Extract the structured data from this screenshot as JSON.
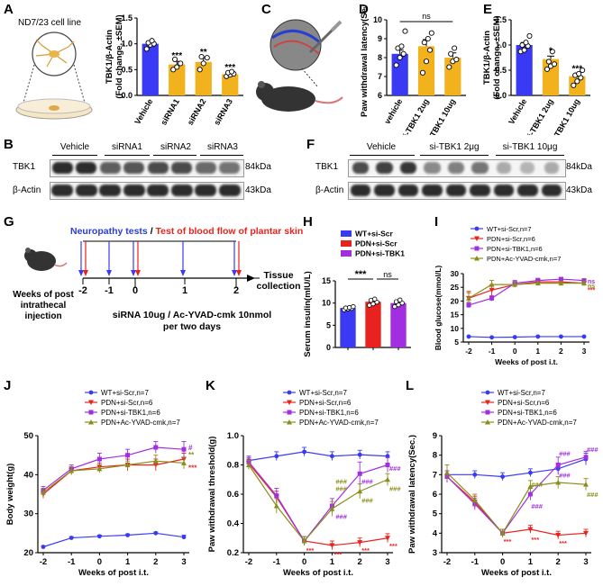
{
  "panels": {
    "A": "A",
    "B": "B",
    "C": "C",
    "D": "D",
    "E": "E",
    "F": "F",
    "G": "G",
    "H": "H",
    "I": "I",
    "J": "J",
    "K": "K",
    "L": "L"
  },
  "panelA": {
    "cell_line": "ND7/23 cell line"
  },
  "panelB": {
    "lanes": [
      "Vehicle",
      "siRNA1",
      "siRNA2",
      "siRNA3"
    ],
    "rows": [
      "TBK1",
      "β-Actin"
    ],
    "sizes": [
      "84kDa",
      "43kDa"
    ]
  },
  "panelF": {
    "lanes": [
      "Vehicle",
      "si-TBK1 2μg",
      "si-TBK1 10μg"
    ],
    "rows": [
      "TBK1",
      "β-Actin"
    ],
    "sizes": [
      "84kDa",
      "43kDa"
    ]
  },
  "panelG": {
    "title_part1": "Neuropathy tests",
    "title_sep": " / ",
    "title_part2": "Test of blood flow of plantar skin",
    "weeks": [
      "-2",
      "-1",
      "0",
      "1",
      "2"
    ],
    "left_label_1": "Weeks of post",
    "left_label_2": "intrathecal injection",
    "right_label_1": "Tissue",
    "right_label_2": "collection",
    "treatment_1": "siRNA 10ug / Ac-YVAD-cmk 10nmol",
    "treatment_2": "per two days"
  },
  "colors": {
    "blue": "#3a3af5",
    "orange": "#f2b21e",
    "red": "#e8231f",
    "purple": "#a12ee0",
    "olive": "#8c8c1a",
    "grey": "#777777"
  },
  "chart_data": [
    {
      "id": "A",
      "type": "bar",
      "categories": [
        "Vehicle",
        "siRNA1",
        "siRNA2",
        "siRNA3"
      ],
      "values": [
        1.0,
        0.6,
        0.65,
        0.41
      ],
      "errors": [
        0.04,
        0.06,
        0.08,
        0.03
      ],
      "points": [
        [
          0.9,
          0.98,
          1.0,
          1.02,
          1.06
        ],
        [
          0.5,
          0.55,
          0.62,
          0.7
        ],
        [
          0.5,
          0.62,
          0.73,
          0.75
        ],
        [
          0.37,
          0.4,
          0.42,
          0.44,
          0.46
        ]
      ],
      "sig": [
        "",
        "***",
        "**",
        "***"
      ],
      "ylabel": "TBK1/β-Actin",
      "ylabel2": "(Fold change, ±SEM)",
      "ylim": [
        0,
        1.5
      ],
      "yticks": [
        "0.0",
        "0.5",
        "1.0",
        "1.5"
      ]
    },
    {
      "id": "D",
      "type": "bar",
      "categories": [
        "vehicle",
        "si-TBK1 2ug",
        "si-TBK1 10ug"
      ],
      "values": [
        8.2,
        8.6,
        8.0
      ],
      "errors": [
        0.2,
        0.35,
        0.25
      ],
      "points": [
        [
          7.6,
          8.0,
          8.2,
          8.5,
          8.6,
          9.4
        ],
        [
          7.2,
          7.8,
          8.4,
          8.8,
          9.0,
          9.3
        ],
        [
          7.5,
          7.8,
          7.9,
          8.2,
          8.5
        ]
      ],
      "sig": [
        "",
        "",
        ""
      ],
      "ns": "ns",
      "ylabel": "Paw withdrawal latency(Sec.)",
      "ylim": [
        6,
        10
      ],
      "yticks": [
        "6",
        "7",
        "8",
        "9",
        "10"
      ]
    },
    {
      "id": "E",
      "type": "bar",
      "categories": [
        "Vehicle",
        "si-TBK1 2ug",
        "si-TBK1 10ug"
      ],
      "values": [
        1.0,
        0.72,
        0.38
      ],
      "errors": [
        0.05,
        0.06,
        0.04
      ],
      "points": [
        [
          0.87,
          0.9,
          0.98,
          1.0,
          1.05,
          1.18
        ],
        [
          0.52,
          0.58,
          0.62,
          0.67,
          0.87
        ],
        [
          0.2,
          0.28,
          0.35,
          0.4,
          0.43,
          0.5
        ]
      ],
      "sig": [
        "",
        "*",
        "***"
      ],
      "ylabel": "TBK1/β-Actin",
      "ylabel2": "(Fold change, ±SEM)",
      "ylim": [
        0,
        1.5
      ],
      "yticks": [
        "0.0",
        "0.5",
        "1.0",
        "1.5"
      ]
    },
    {
      "id": "H",
      "type": "bar",
      "categories": [
        "WT+si-Scr",
        "PDN+si-Scr",
        "PDN+si-TBK1"
      ],
      "values": [
        8.9,
        10.3,
        10.0
      ],
      "errors": [
        0.15,
        0.35,
        0.4
      ],
      "points": [
        [
          8.5,
          8.7,
          8.8,
          8.9,
          9.0,
          9.2
        ],
        [
          9.5,
          9.8,
          10.2,
          10.6,
          10.9
        ],
        [
          9.2,
          9.6,
          10.0,
          10.3,
          10.7
        ]
      ],
      "sig_text": "***",
      "ns": "ns",
      "ylabel": "Serum insulin(mIU/L)",
      "ylim": [
        0,
        15
      ],
      "yticks": [
        "0",
        "5",
        "10",
        "15"
      ]
    },
    {
      "id": "I",
      "type": "line",
      "x": [
        "-2",
        "-1",
        "0",
        "1",
        "2",
        "3"
      ],
      "xlabel": "Weeks of post i.t.",
      "ylabel": "Blood glucose(mmol/L)",
      "ylim": [
        5,
        30
      ],
      "yticks": [
        "5",
        "10",
        "15",
        "20",
        "25",
        "30"
      ],
      "series": [
        {
          "name": "WT+si-Scr,n=7",
          "values": [
            7,
            6.7,
            6.8,
            7,
            7,
            7
          ],
          "errors": [
            0.2,
            0.2,
            0.2,
            0.2,
            0.2,
            0.2
          ]
        },
        {
          "name": "PDN+si-Scr,n=6",
          "values": [
            21,
            24,
            26,
            27,
            27,
            26.5
          ],
          "errors": [
            2.5,
            2,
            1,
            0.8,
            0.8,
            0.8
          ]
        },
        {
          "name": "PDN+si-TBK1,n=6",
          "values": [
            18.5,
            21,
            26.5,
            27.5,
            28,
            27.5
          ],
          "errors": [
            1,
            1,
            1,
            0.8,
            0.5,
            0.5
          ]
        },
        {
          "name": "PDN+Ac-YVAD-cmk,n=7",
          "values": [
            21,
            26,
            26,
            26.5,
            26.5,
            26.5
          ],
          "errors": [
            2,
            1.5,
            1,
            0.8,
            0.8,
            0.8
          ]
        }
      ],
      "annotations": [
        "ns",
        "ns",
        "***"
      ]
    },
    {
      "id": "J",
      "type": "line",
      "x": [
        "-2",
        "-1",
        "0",
        "1",
        "2",
        "3"
      ],
      "xlabel": "Weeks of post i.t.",
      "ylabel": "Body weight(g)",
      "ylim": [
        20,
        50
      ],
      "yticks": [
        "20",
        "30",
        "40",
        "50"
      ],
      "series": [
        {
          "name": "WT+si-Scr,n=7",
          "values": [
            21.5,
            23.8,
            24.2,
            24.5,
            25,
            24
          ],
          "errors": [
            0.2,
            0.3,
            0.3,
            0.3,
            0.3,
            0.5
          ]
        },
        {
          "name": "PDN+si-Scr,n=6",
          "values": [
            35,
            41,
            42,
            42.5,
            42.5,
            44
          ],
          "errors": [
            1,
            1,
            1,
            1.5,
            1.5,
            1.5
          ]
        },
        {
          "name": "PDN+si-TBK1,n=6",
          "values": [
            36,
            41.5,
            44,
            45,
            47,
            46.5
          ],
          "errors": [
            1,
            1,
            1.5,
            1.5,
            1.5,
            2
          ]
        },
        {
          "name": "PDN+Ac-YVAD-cmk,n=7",
          "values": [
            35.5,
            41,
            41.5,
            42.5,
            43.5,
            43
          ],
          "errors": [
            1,
            1,
            1,
            1,
            1.5,
            1.5
          ]
        }
      ],
      "annotations": [
        "#",
        "**",
        "***"
      ]
    },
    {
      "id": "K",
      "type": "line",
      "x": [
        "-2",
        "-1",
        "0",
        "1",
        "2",
        "3"
      ],
      "xlabel": "Weeks of post i.t.",
      "ylabel": "Paw withdrawal threshold(g)",
      "ylim": [
        0.2,
        1.0
      ],
      "yticks": [
        "0.2",
        "0.4",
        "0.6",
        "0.8",
        "1.0"
      ],
      "series": [
        {
          "name": "WT+si-Scr,n=7",
          "values": [
            0.83,
            0.86,
            0.89,
            0.86,
            0.87,
            0.86
          ],
          "errors": [
            0.03,
            0.03,
            0.03,
            0.03,
            0.03,
            0.03
          ]
        },
        {
          "name": "PDN+si-Scr,n=6",
          "values": [
            0.81,
            0.58,
            0.28,
            0.25,
            0.27,
            0.3
          ],
          "errors": [
            0.03,
            0.04,
            0.03,
            0.03,
            0.03,
            0.03
          ]
        },
        {
          "name": "PDN+si-TBK1,n=6",
          "values": [
            0.82,
            0.59,
            0.28,
            0.52,
            0.74,
            0.8
          ],
          "errors": [
            0.03,
            0.05,
            0.03,
            0.05,
            0.08,
            0.05
          ]
        },
        {
          "name": "PDN+Ac-YVAD-cmk,n=7",
          "values": [
            0.8,
            0.52,
            0.28,
            0.5,
            0.62,
            0.7
          ],
          "errors": [
            0.03,
            0.05,
            0.03,
            0.05,
            0.05,
            0.04
          ]
        }
      ],
      "annotations": [
        "###",
        "###",
        "###",
        "***",
        "***",
        "***",
        "***",
        "###",
        "###",
        "###",
        "###"
      ]
    },
    {
      "id": "L",
      "type": "line",
      "x": [
        "-2",
        "-1",
        "0",
        "1",
        "2",
        "3"
      ],
      "xlabel": "Weeks of post i.t.",
      "ylabel": "Paw withdrawal latency(Sec.)",
      "ylim": [
        3,
        9
      ],
      "yticks": [
        "3",
        "4",
        "5",
        "6",
        "7",
        "8",
        "9"
      ],
      "series": [
        {
          "name": "WT+si-Scr,n=7",
          "values": [
            7,
            7,
            6.9,
            7.1,
            7.3,
            7.8
          ],
          "errors": [
            0.2,
            0.2,
            0.2,
            0.2,
            0.3,
            0.3
          ]
        },
        {
          "name": "PDN+si-Scr,n=6",
          "values": [
            6.9,
            5.6,
            4.0,
            4.2,
            3.9,
            4.0
          ],
          "errors": [
            0.3,
            0.3,
            0.2,
            0.2,
            0.2,
            0.2
          ]
        },
        {
          "name": "PDN+si-TBK1,n=6",
          "values": [
            6.9,
            5.5,
            4.0,
            6.0,
            7.5,
            7.9
          ],
          "errors": [
            0.3,
            0.3,
            0.2,
            0.3,
            0.4,
            0.3
          ]
        },
        {
          "name": "PDN+Ac-YVAD-cmk,n=7",
          "values": [
            7.1,
            5.7,
            4.0,
            6.4,
            6.6,
            6.5
          ],
          "errors": [
            0.4,
            0.3,
            0.2,
            0.3,
            0.3,
            0.3
          ]
        }
      ],
      "annotations": [
        "###",
        "###",
        "###",
        "###",
        "***",
        "***",
        "***",
        "###",
        "###"
      ]
    }
  ]
}
